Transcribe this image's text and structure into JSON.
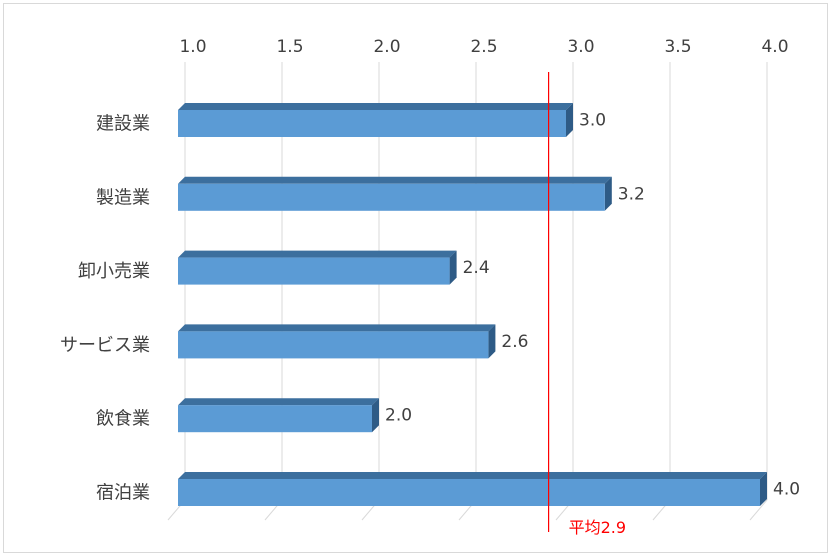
{
  "chart_data": {
    "type": "bar",
    "orientation": "horizontal",
    "categories": [
      "建設業",
      "製造業",
      "卸小売業",
      "サービス業",
      "飲食業",
      "宿泊業"
    ],
    "values": [
      3.0,
      3.2,
      2.4,
      2.6,
      2.0,
      4.0
    ],
    "value_labels": [
      "3.0",
      "3.2",
      "2.4",
      "2.6",
      "2.0",
      "4.0"
    ],
    "xlim": [
      1.0,
      4.0
    ],
    "x_ticks": [
      "1.0",
      "1.5",
      "2.0",
      "2.5",
      "3.0",
      "3.5",
      "4.0"
    ],
    "x_axis_position": "top",
    "grid": true,
    "bar_style": "3d",
    "reference_line": {
      "value": 2.9,
      "label": "平均2.9",
      "color": "#ff0000"
    },
    "colors": {
      "bar_front": "#5b9bd5",
      "bar_top": "#3c6f9e",
      "bar_side": "#2e5b86",
      "grid": "#d9d9d9",
      "text": "#404040"
    }
  }
}
